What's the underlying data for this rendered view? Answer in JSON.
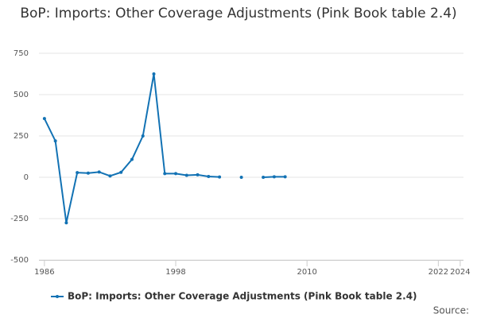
{
  "chart_data": {
    "type": "line",
    "title": "BoP: Imports: Other Coverage Adjustments (Pink Book table 2.4)",
    "x": [
      1986,
      1987,
      1988,
      1989,
      1990,
      1991,
      1992,
      1993,
      1994,
      1995,
      1996,
      1997,
      1998,
      1999,
      2000,
      2001,
      2002,
      2003,
      2004,
      2005,
      2006,
      2007,
      2008
    ],
    "series": [
      {
        "name": "BoP: Imports: Other Coverage Adjustments (Pink Book table 2.4)",
        "color": "#1272b4",
        "values": [
          355,
          220,
          -275,
          28,
          25,
          32,
          8,
          30,
          108,
          250,
          625,
          22,
          22,
          12,
          15,
          5,
          2,
          null,
          0,
          null,
          0,
          3,
          3
        ]
      }
    ],
    "xlim": [
      1985.5,
      2024.3
    ],
    "xticks": [
      1986,
      1998,
      2010,
      2022,
      2024
    ],
    "ylim": [
      -500,
      750
    ],
    "yticks": [
      -500,
      -250,
      0,
      250,
      500,
      750
    ],
    "grid": true,
    "legend": "bottom",
    "source_label": "Source:"
  }
}
